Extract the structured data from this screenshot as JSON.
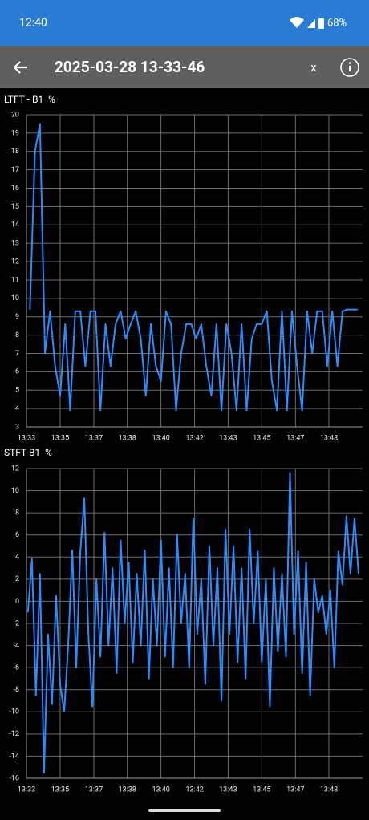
{
  "status_bar": {
    "time": "12:40",
    "battery": "68%"
  },
  "toolbar": {
    "title": "2025-03-28 13-33-46",
    "close_label": "x"
  },
  "chart_data": [
    {
      "type": "line",
      "title": "LTFT - B1  %",
      "color": "#2b8cff",
      "grid": true,
      "xlim": [
        813.33,
        830
      ],
      "ylim": [
        3,
        20
      ],
      "xticks": [
        {
          "value": 813.33,
          "label": "13:33"
        },
        {
          "value": 815,
          "label": "13:35"
        },
        {
          "value": 816.67,
          "label": "13:37"
        },
        {
          "value": 818.33,
          "label": "13:38"
        },
        {
          "value": 820,
          "label": "13:40"
        },
        {
          "value": 821.67,
          "label": "13:42"
        },
        {
          "value": 823.33,
          "label": "13:43"
        },
        {
          "value": 825,
          "label": "13:45"
        },
        {
          "value": 826.67,
          "label": "13:47"
        },
        {
          "value": 828.33,
          "label": "13:48"
        }
      ],
      "yticks": [
        3,
        4,
        5,
        6,
        7,
        8,
        9,
        10,
        11,
        12,
        13,
        14,
        15,
        16,
        17,
        18,
        19,
        20
      ],
      "x": [
        813.5,
        813.75,
        814,
        814.25,
        814.5,
        814.75,
        815,
        815.25,
        815.5,
        815.75,
        816,
        816.25,
        816.5,
        816.75,
        817,
        817.25,
        817.5,
        817.75,
        818,
        818.25,
        818.5,
        818.75,
        819,
        819.25,
        819.5,
        819.75,
        820,
        820.25,
        820.5,
        820.75,
        821,
        821.25,
        821.5,
        821.75,
        822,
        822.25,
        822.5,
        822.75,
        823,
        823.25,
        823.5,
        823.75,
        824,
        824.25,
        824.5,
        824.75,
        825,
        825.25,
        825.5,
        825.75,
        826,
        826.25,
        826.5,
        826.75,
        827,
        827.25,
        827.5,
        827.75,
        828,
        828.25,
        828.5,
        828.75,
        829,
        829.25,
        829.5,
        829.75
      ],
      "values": [
        9.4,
        18,
        19.5,
        7,
        9.3,
        6.3,
        4.7,
        8.6,
        3.9,
        9.3,
        9.3,
        6.3,
        9.3,
        9.3,
        3.9,
        8.6,
        6.3,
        8.6,
        9.3,
        7.8,
        8.6,
        9.3,
        7.8,
        4.7,
        8.6,
        6.3,
        5.5,
        9.3,
        8.6,
        3.9,
        7,
        8.6,
        8.6,
        7.8,
        8.6,
        6.3,
        4.7,
        8.6,
        3.9,
        8.6,
        7,
        3.9,
        8.6,
        3.9,
        7.8,
        8.6,
        8.6,
        9.3,
        5.5,
        3.9,
        9.3,
        3.9,
        9.3,
        6.3,
        3.9,
        9.3,
        7,
        9.3,
        9.3,
        6.3,
        9.3,
        6.3,
        9.3,
        9.4,
        9.4,
        9.4
      ]
    },
    {
      "type": "line",
      "title": "STFT B1  %",
      "color": "#2b8cff",
      "grid": true,
      "xlim": [
        813.33,
        830
      ],
      "ylim": [
        -16,
        12
      ],
      "xticks": [
        {
          "value": 813.33,
          "label": "13:33"
        },
        {
          "value": 815,
          "label": "13:35"
        },
        {
          "value": 816.67,
          "label": "13:37"
        },
        {
          "value": 818.33,
          "label": "13:38"
        },
        {
          "value": 820,
          "label": "13:40"
        },
        {
          "value": 821.67,
          "label": "13:42"
        },
        {
          "value": 823.33,
          "label": "13:43"
        },
        {
          "value": 825,
          "label": "13:45"
        },
        {
          "value": 826.67,
          "label": "13:47"
        },
        {
          "value": 828.33,
          "label": "13:48"
        }
      ],
      "yticks": [
        -16,
        -14,
        -12,
        -10,
        -8,
        -6,
        -4,
        -2,
        0,
        2,
        4,
        6,
        8,
        10,
        12
      ],
      "x": [
        813.4,
        813.6,
        813.8,
        814,
        814.2,
        814.4,
        814.6,
        814.8,
        815,
        815.2,
        815.4,
        815.6,
        815.8,
        816,
        816.2,
        816.4,
        816.6,
        816.8,
        817,
        817.2,
        817.4,
        817.6,
        817.8,
        818,
        818.2,
        818.4,
        818.6,
        818.8,
        819,
        819.2,
        819.4,
        819.6,
        819.8,
        820,
        820.2,
        820.4,
        820.6,
        820.8,
        821,
        821.2,
        821.4,
        821.6,
        821.8,
        822,
        822.2,
        822.4,
        822.6,
        822.8,
        823,
        823.2,
        823.4,
        823.6,
        823.8,
        824,
        824.2,
        824.4,
        824.6,
        824.8,
        825,
        825.2,
        825.4,
        825.6,
        825.8,
        826,
        826.2,
        826.4,
        826.6,
        826.8,
        827,
        827.2,
        827.4,
        827.6,
        827.8,
        828,
        828.2,
        828.4,
        828.6,
        828.8,
        829,
        829.2,
        829.4,
        829.6,
        829.8
      ],
      "values": [
        -1,
        3.8,
        -8.5,
        2.5,
        -15.5,
        -3,
        -9.3,
        0.5,
        -7.5,
        -10,
        -4,
        4.6,
        -6,
        4.5,
        9.3,
        -3,
        -9.5,
        2,
        -5,
        6.2,
        -4,
        3,
        -6.5,
        5.5,
        -2,
        3.5,
        -5.5,
        2.5,
        -4,
        4.6,
        -7,
        2,
        -4,
        5.5,
        -5,
        3,
        -6,
        6,
        -2,
        2.5,
        -6,
        7.5,
        -3,
        2,
        -7.5,
        5,
        -4,
        3,
        -9,
        6.5,
        -3,
        5,
        -5.5,
        3,
        -7,
        6.5,
        -2,
        4.5,
        -5.5,
        2,
        -9.5,
        3,
        -4.5,
        2.5,
        -5,
        11.6,
        -3,
        4.5,
        -6.5,
        3.5,
        -8.5,
        2,
        -1,
        0.5,
        -3,
        1,
        -6,
        4.5,
        1.5,
        7.7,
        2.5,
        7.5,
        2.5
      ]
    }
  ]
}
